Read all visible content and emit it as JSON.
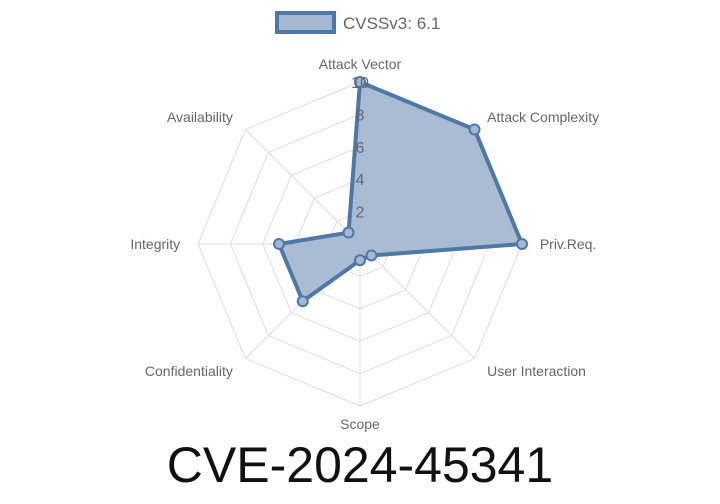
{
  "chart_data": {
    "type": "radar",
    "title": "CVE-2024-45341",
    "legend": {
      "position": "top",
      "entries": [
        "CVSSv3: 6.1"
      ]
    },
    "axes": [
      "Attack Vector",
      "Attack Complexity",
      "Priv.Req.",
      "User Interaction",
      "Scope",
      "Confidentiality",
      "Integrity",
      "Availability"
    ],
    "rlim": [
      0,
      10
    ],
    "ticks": [
      "2",
      "4",
      "6",
      "8",
      "10"
    ],
    "grid": true,
    "series": [
      {
        "name": "CVSSv3: 6.1",
        "values": [
          10,
          10,
          10,
          1,
          1,
          5,
          5,
          1
        ]
      }
    ],
    "colors": {
      "line": "#4e79a7",
      "fill": "#a5b8d1",
      "grid": "#dddddd"
    }
  }
}
